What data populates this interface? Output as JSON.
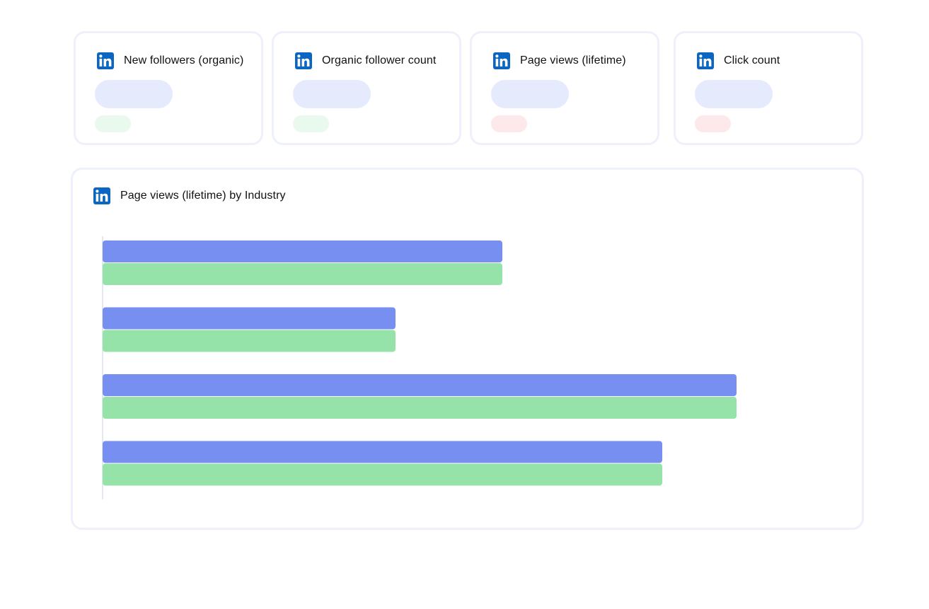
{
  "metrics": [
    {
      "title": "New followers (organic)",
      "delta_status": "positive"
    },
    {
      "title": "Organic follower count",
      "delta_status": "positive"
    },
    {
      "title": "Page views (lifetime)",
      "delta_status": "negative"
    },
    {
      "title": "Click count",
      "delta_status": "negative"
    }
  ],
  "icons": {
    "brand": "linkedin-icon"
  },
  "colors": {
    "linkedin_blue": "#0a66c2",
    "value_placeholder": "#e5ebfd",
    "delta_positive": "#e9f9ee",
    "delta_negative": "#fde8ec",
    "series_1": "#778ff0",
    "series_2": "#95e3a9",
    "axis": "#e6e8f0"
  },
  "chart": {
    "title": "Page views (lifetime) by Industry"
  },
  "chart_data": {
    "type": "bar",
    "orientation": "horizontal",
    "title": "Page views (lifetime) by Industry",
    "categories": [
      "",
      "",
      "",
      ""
    ],
    "series": [
      {
        "name": "",
        "color": "#778ff0",
        "values": [
          565,
          414,
          896,
          791
        ]
      },
      {
        "name": "",
        "color": "#95e3a9",
        "values": [
          565,
          414,
          896,
          791
        ]
      }
    ],
    "xlim": [
      0,
      1000
    ],
    "grid": false,
    "xlabel": "",
    "ylabel": ""
  }
}
